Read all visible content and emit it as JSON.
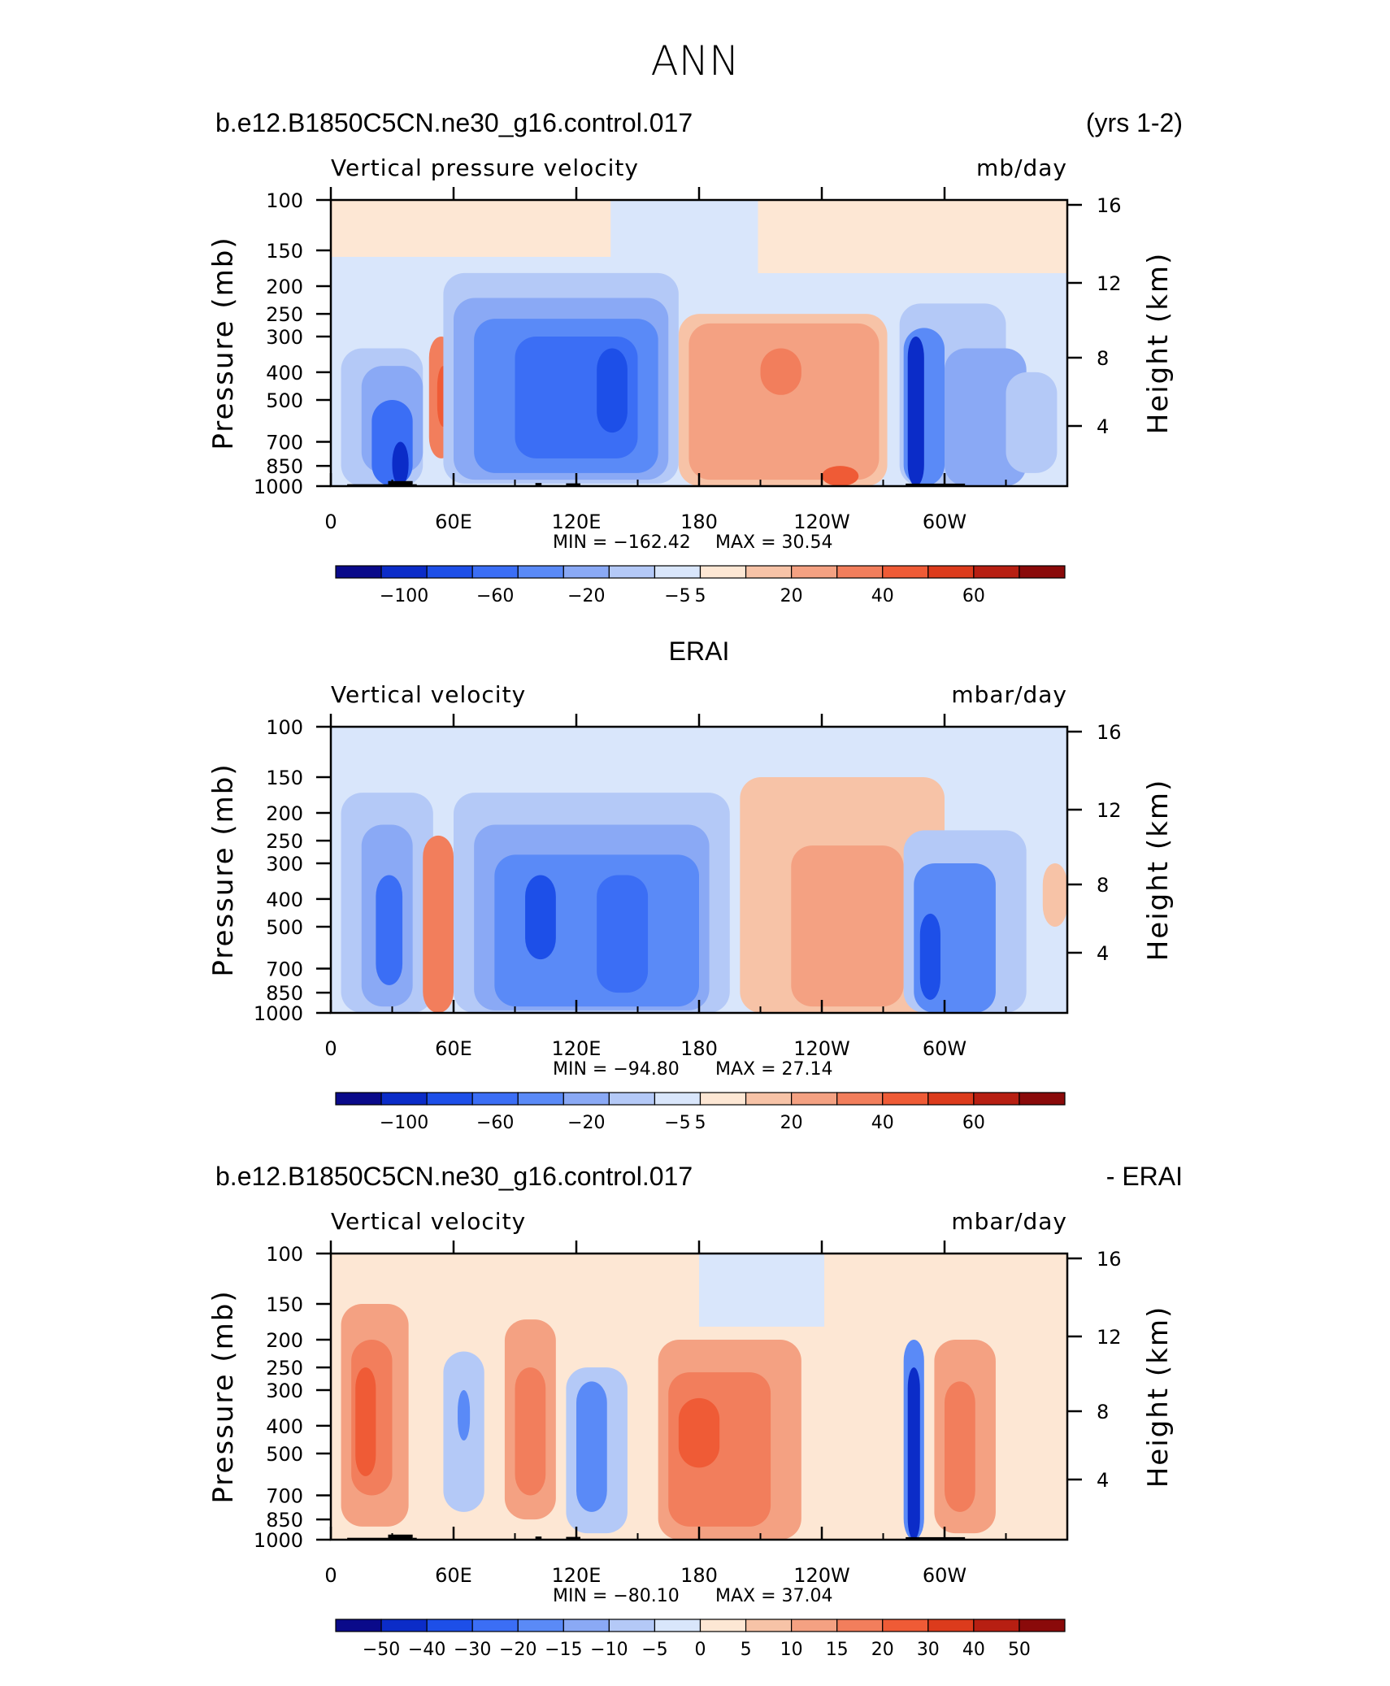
{
  "figure": {
    "title": "ANN"
  },
  "palette": {
    "full": [
      "#0a0a8a",
      "#0b2cc8",
      "#1d4fe8",
      "#3b6ef5",
      "#5a8af7",
      "#8aa9f5",
      "#b4c9f7",
      "#d9e6fb",
      "#fde7d4",
      "#f7c3a7",
      "#f4a182",
      "#f27e5c",
      "#ef5b36",
      "#dc3b1c",
      "#b71f12",
      "#8a0a0a"
    ],
    "diff": [
      "#0a0a8a",
      "#0b2cc8",
      "#1d4fe8",
      "#3b6ef5",
      "#5a8af7",
      "#8aa9f5",
      "#b4c9f7",
      "#d9e6fb",
      "#fde7d4",
      "#f7c3a7",
      "#f4a182",
      "#f27e5c",
      "#ef5b36",
      "#dc3b1c",
      "#b71f12",
      "#8a0a0a"
    ]
  },
  "chart_data": [
    {
      "type": "heatmap",
      "title_left": "b.e12.B1850C5CN.ne30_g16.control.017",
      "title_center": "",
      "title_right": "(yrs 1-2)",
      "variable": "Vertical pressure velocity",
      "units": "mb/day",
      "ylabel": "Pressure (mb)",
      "ylabel_right": "Height (km)",
      "xticks": [
        "0",
        "60E",
        "120E",
        "180",
        "120W",
        "60W"
      ],
      "yticks": [
        "100",
        "150",
        "200",
        "250",
        "300",
        "400",
        "500",
        "700",
        "850",
        "1000"
      ],
      "yticks_right": [
        "16",
        "12",
        "8",
        "4"
      ],
      "xlim": [
        0,
        360
      ],
      "ylim": [
        1000,
        100
      ],
      "min_label": "MIN =  −162.42",
      "max_label": "MAX =    30.54",
      "min": -162.42,
      "max": 30.54,
      "colorbar_labels": [
        "−100",
        "−60",
        "−20",
        "−5",
        "5",
        "20",
        "40",
        "60"
      ],
      "palette": "full",
      "terrain": true
    },
    {
      "type": "heatmap",
      "title_left": "",
      "title_center": "ERAI",
      "title_right": "",
      "variable": "Vertical velocity",
      "units": "mbar/day",
      "ylabel": "Pressure (mb)",
      "ylabel_right": "Height (km)",
      "xticks": [
        "0",
        "60E",
        "120E",
        "180",
        "120W",
        "60W"
      ],
      "yticks": [
        "100",
        "150",
        "200",
        "250",
        "300",
        "400",
        "500",
        "700",
        "850",
        "1000"
      ],
      "yticks_right": [
        "16",
        "12",
        "8",
        "4"
      ],
      "xlim": [
        0,
        360
      ],
      "ylim": [
        1000,
        100
      ],
      "min_label": "MIN =  −94.80",
      "max_label": "MAX =    27.14",
      "min": -94.8,
      "max": 27.14,
      "colorbar_labels": [
        "−100",
        "−60",
        "−20",
        "−5",
        "5",
        "20",
        "40",
        "60"
      ],
      "palette": "full",
      "terrain": false
    },
    {
      "type": "heatmap",
      "title_left": "b.e12.B1850C5CN.ne30_g16.control.017",
      "title_center": "",
      "title_right": "- ERAI",
      "variable": "Vertical velocity",
      "units": "mbar/day",
      "ylabel": "Pressure (mb)",
      "ylabel_right": "Height (km)",
      "xticks": [
        "0",
        "60E",
        "120E",
        "180",
        "120W",
        "60W"
      ],
      "yticks": [
        "100",
        "150",
        "200",
        "250",
        "300",
        "400",
        "500",
        "700",
        "850",
        "1000"
      ],
      "yticks_right": [
        "16",
        "12",
        "8",
        "4"
      ],
      "xlim": [
        0,
        360
      ],
      "ylim": [
        1000,
        100
      ],
      "min_label": "MIN =  −80.10",
      "max_label": "MAX =    37.04",
      "min": -80.1,
      "max": 37.04,
      "colorbar_labels": [
        "−50",
        "−40",
        "−30",
        "−20",
        "−15",
        "−10",
        "−5",
        "0",
        "5",
        "10",
        "15",
        "20",
        "30",
        "40",
        "50"
      ],
      "palette": "diff",
      "terrain": true
    }
  ]
}
